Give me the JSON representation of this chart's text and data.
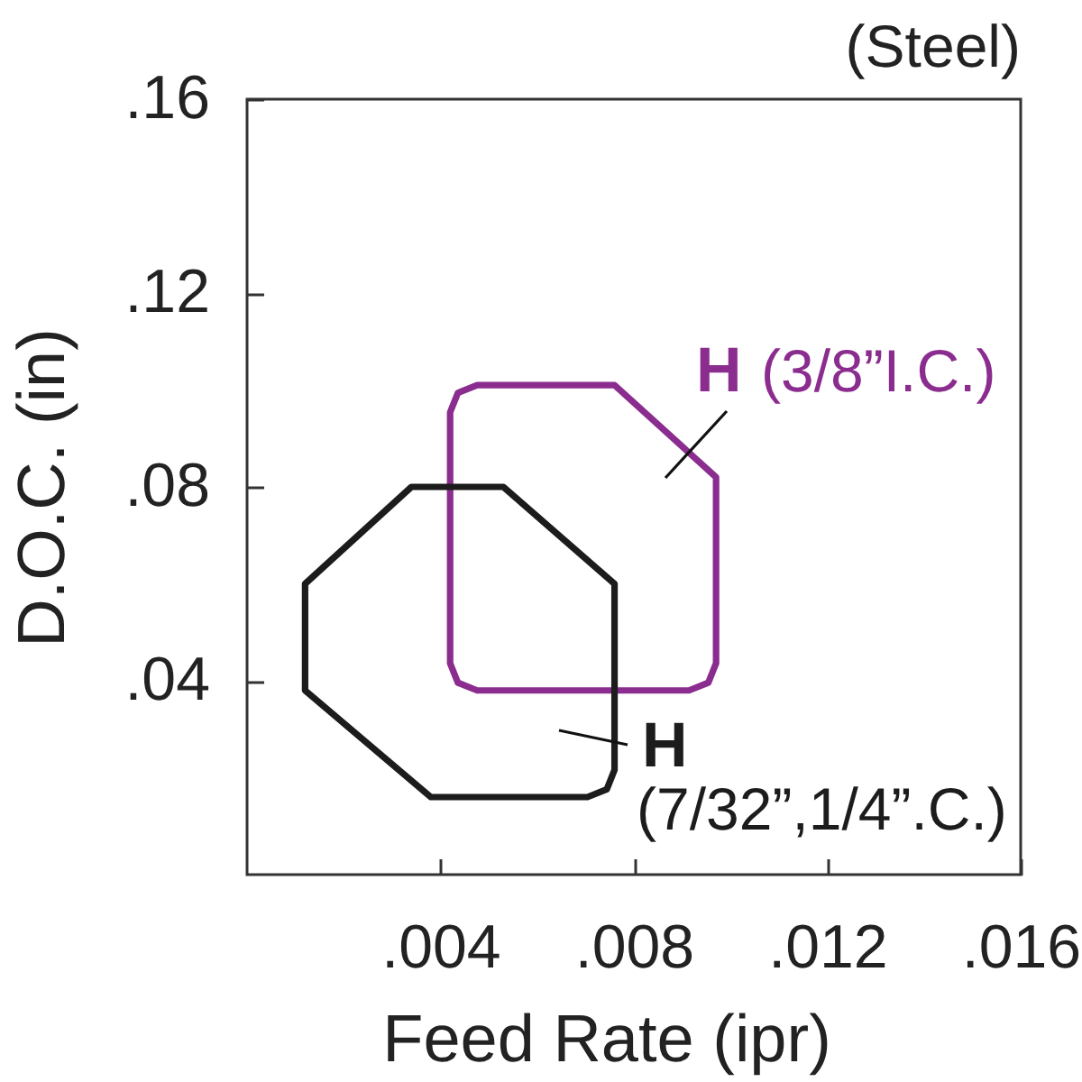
{
  "chart_data": {
    "type": "line",
    "title": "(Steel)",
    "xlabel": "Feed Rate (ipr)",
    "ylabel": "D.O.C. (in)",
    "xlim": [
      0,
      0.016
    ],
    "ylim": [
      0,
      0.16
    ],
    "xticks": [
      {
        "value": 0.004,
        "label": ".004"
      },
      {
        "value": 0.008,
        "label": ".008"
      },
      {
        "value": 0.012,
        "label": ".012"
      },
      {
        "value": 0.016,
        "label": ".016"
      }
    ],
    "yticks": [
      {
        "value": 0.04,
        "label": ".04"
      },
      {
        "value": 0.08,
        "label": ".08"
      },
      {
        "value": 0.12,
        "label": ".12"
      },
      {
        "value": 0.16,
        "label": ".16"
      }
    ],
    "series": [
      {
        "name": "H (3/8”I.C.)",
        "color": "#8b2c8f",
        "x": [
          0.006,
          0.0076,
          0.0097,
          0.0097,
          0.00954,
          0.00914,
          0.00476,
          0.00436,
          0.0042,
          0.0042,
          0.00436,
          0.00476,
          0.0062
        ],
        "values": [
          0.101,
          0.101,
          0.082,
          0.0436,
          0.0396,
          0.038,
          0.038,
          0.0396,
          0.0436,
          0.0954,
          0.0994,
          0.101,
          0.101
        ]
      },
      {
        "name": "H (7/32”,1/4”.C.)",
        "color": "#1c1c1c",
        "x": [
          0.0043,
          0.0053,
          0.0076,
          0.0076,
          0.00744,
          0.00704,
          0.0038,
          0.0012,
          0.0012,
          0.0034,
          0.0045
        ],
        "values": [
          0.08,
          0.08,
          0.06,
          0.0216,
          0.0176,
          0.016,
          0.016,
          0.038,
          0.06,
          0.08,
          0.08
        ]
      }
    ]
  }
}
